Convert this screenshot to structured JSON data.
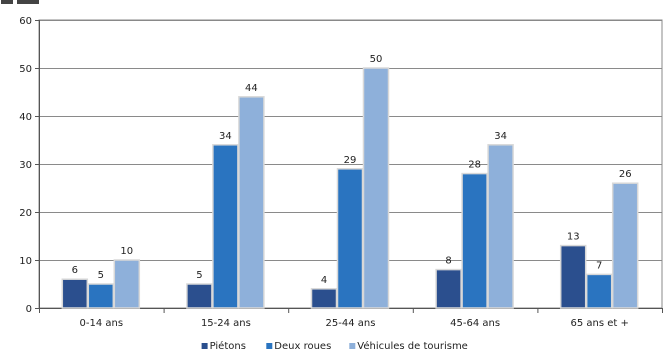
{
  "chart_data": {
    "type": "bar",
    "title": "",
    "xlabel": "",
    "ylabel": "",
    "ylim": [
      0,
      60
    ],
    "yticks": [
      0,
      10,
      20,
      30,
      40,
      50,
      60
    ],
    "grid": true,
    "legend_position": "bottom",
    "categories": [
      "0-14 ans",
      "15-24 ans",
      "25-44 ans",
      "45-64 ans",
      "65 ans et +"
    ],
    "series": [
      {
        "name": "Piétons",
        "color": "#2b4f8e",
        "values": [
          6,
          5,
          4,
          8,
          13
        ]
      },
      {
        "name": "Deux roues",
        "color": "#2a74c0",
        "values": [
          5,
          34,
          29,
          28,
          7
        ]
      },
      {
        "name": "Véhicules de tourisme",
        "color": "#8eb0da",
        "values": [
          10,
          44,
          50,
          34,
          26
        ]
      }
    ]
  }
}
